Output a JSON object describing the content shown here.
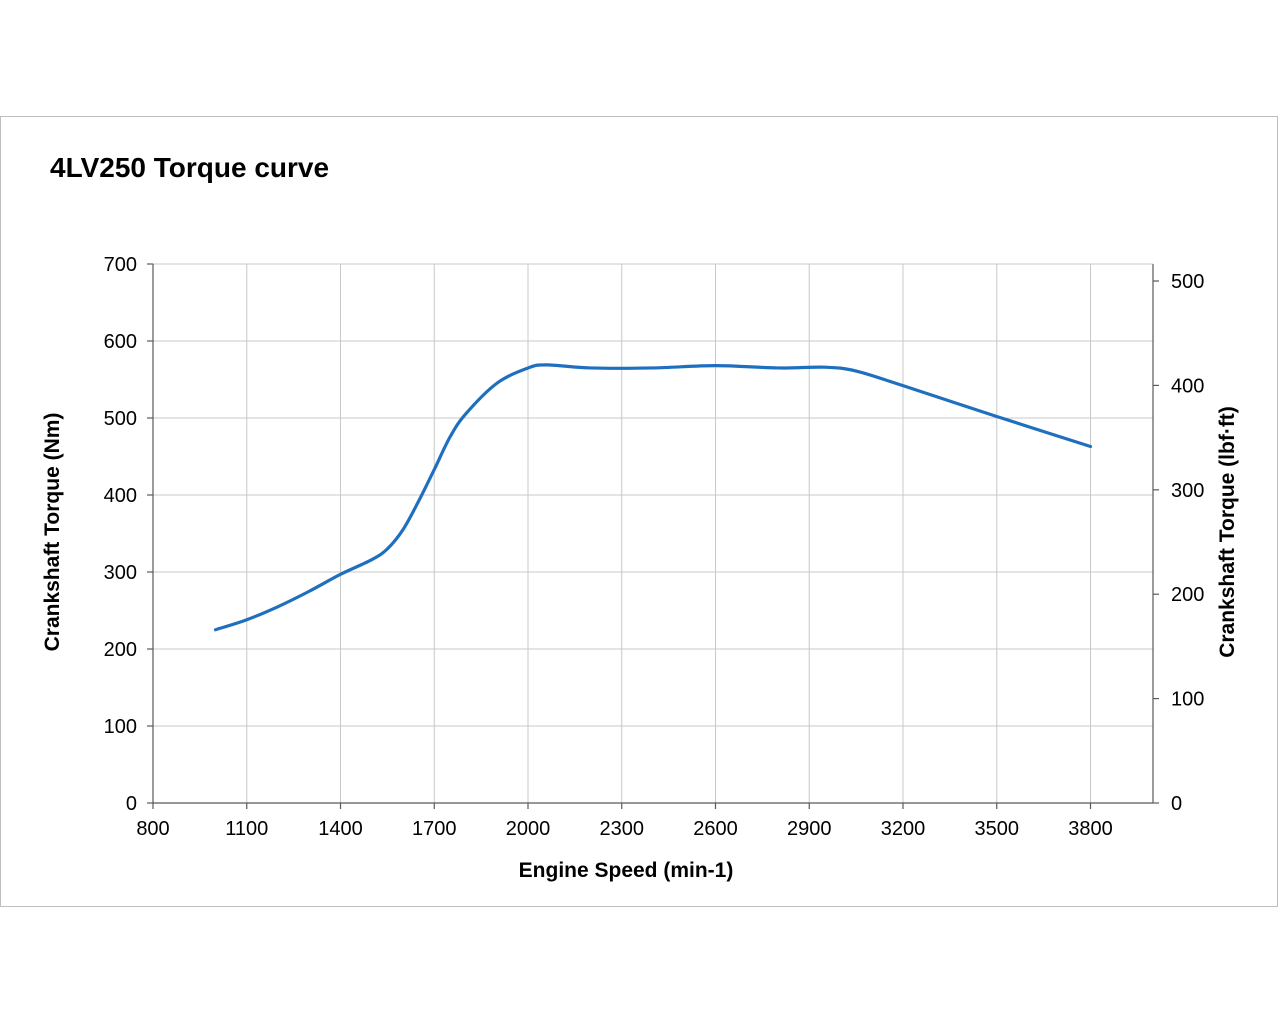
{
  "chart_data": {
    "type": "line",
    "title": "4LV250  Torque curve",
    "xlabel": "Engine Speed (min-1)",
    "ylabel": "Crankshaft  Torque (Nm)",
    "y2label": "Crankshaft  Torque (lbf·ft)",
    "xlim": [
      800,
      4000
    ],
    "ylim": [
      0,
      700
    ],
    "y2lim": [
      0,
      516.3
    ],
    "xticks": [
      "800",
      "1100",
      "1400",
      "1700",
      "2000",
      "2300",
      "2600",
      "2900",
      "3200",
      "3500",
      "3800"
    ],
    "yticks": [
      "0",
      "100",
      "200",
      "300",
      "400",
      "500",
      "600",
      "700"
    ],
    "y2ticks": [
      "0",
      "100",
      "200",
      "300",
      "400",
      "500"
    ],
    "grid": true,
    "line_color": "#1f6fbf",
    "series": [
      {
        "x": [
          1000,
          1100,
          1200,
          1300,
          1400,
          1500,
          1550,
          1600,
          1650,
          1700,
          1750,
          1800,
          1900,
          2000,
          2060,
          2200,
          2400,
          2600,
          2800,
          2950,
          3050,
          3200,
          3500,
          3800
        ],
        "values": [
          225,
          238,
          255,
          275,
          297,
          316,
          330,
          355,
          392,
          433,
          475,
          505,
          545,
          565,
          569,
          565,
          565,
          568,
          565,
          566,
          561,
          542,
          502,
          463
        ]
      }
    ]
  }
}
